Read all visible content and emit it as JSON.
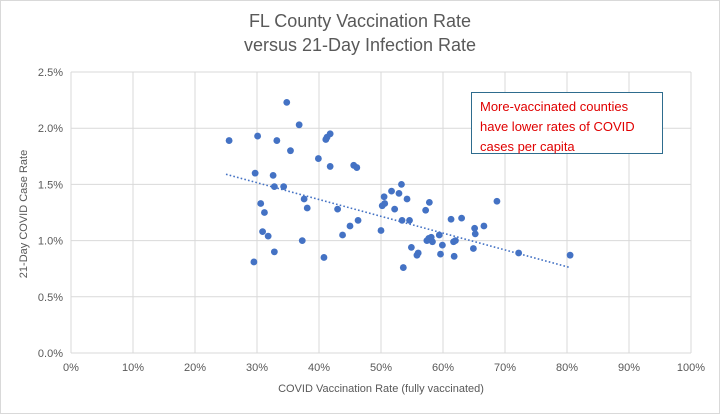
{
  "chart_data": {
    "type": "scatter",
    "title_lines": [
      "FL County Vaccination Rate",
      "versus 21-Day Infection Rate"
    ],
    "xlabel": "COVID Vaccination Rate (fully vaccinated)",
    "ylabel": "21-Day COVID Case Rate",
    "xlim": [
      0,
      100
    ],
    "ylim": [
      0,
      2.5
    ],
    "x_ticks": [
      "0%",
      "10%",
      "20%",
      "30%",
      "40%",
      "50%",
      "60%",
      "70%",
      "80%",
      "90%",
      "100%"
    ],
    "y_ticks": [
      "0.0%",
      "0.5%",
      "1.0%",
      "1.5%",
      "2.0%",
      "2.5%"
    ],
    "grid": "both",
    "point_color": "#4472c4",
    "trendline": {
      "style": "dotted",
      "color": "#4472c4",
      "x": [
        25,
        80.5
      ],
      "y": [
        1.59,
        0.76
      ]
    },
    "annotation_lines": [
      "More-vaccinated counties",
      "have lower rates of COVID",
      "cases per capita"
    ],
    "annotation_color": "#e00000",
    "points": [
      {
        "x": 25.5,
        "y": 1.89
      },
      {
        "x": 29.5,
        "y": 0.81
      },
      {
        "x": 29.7,
        "y": 1.6
      },
      {
        "x": 30.1,
        "y": 1.93
      },
      {
        "x": 30.6,
        "y": 1.33
      },
      {
        "x": 30.9,
        "y": 1.08
      },
      {
        "x": 31.2,
        "y": 1.25
      },
      {
        "x": 31.8,
        "y": 1.04
      },
      {
        "x": 32.6,
        "y": 1.58
      },
      {
        "x": 32.8,
        "y": 1.48
      },
      {
        "x": 32.8,
        "y": 0.9
      },
      {
        "x": 33.2,
        "y": 1.89
      },
      {
        "x": 34.3,
        "y": 1.48
      },
      {
        "x": 34.8,
        "y": 2.23
      },
      {
        "x": 35.4,
        "y": 1.8
      },
      {
        "x": 36.8,
        "y": 2.03
      },
      {
        "x": 37.3,
        "y": 1.0
      },
      {
        "x": 37.6,
        "y": 1.37
      },
      {
        "x": 38.1,
        "y": 1.29
      },
      {
        "x": 39.9,
        "y": 1.73
      },
      {
        "x": 40.8,
        "y": 0.85
      },
      {
        "x": 41.1,
        "y": 1.9
      },
      {
        "x": 41.3,
        "y": 1.92
      },
      {
        "x": 41.8,
        "y": 1.95
      },
      {
        "x": 41.8,
        "y": 1.66
      },
      {
        "x": 43.0,
        "y": 1.28
      },
      {
        "x": 43.8,
        "y": 1.05
      },
      {
        "x": 45.0,
        "y": 1.13
      },
      {
        "x": 45.6,
        "y": 1.67
      },
      {
        "x": 46.1,
        "y": 1.65
      },
      {
        "x": 46.3,
        "y": 1.18
      },
      {
        "x": 50.0,
        "y": 1.09
      },
      {
        "x": 50.2,
        "y": 1.31
      },
      {
        "x": 50.5,
        "y": 1.39
      },
      {
        "x": 50.6,
        "y": 1.33
      },
      {
        "x": 51.7,
        "y": 1.44
      },
      {
        "x": 52.2,
        "y": 1.28
      },
      {
        "x": 52.9,
        "y": 1.42
      },
      {
        "x": 53.3,
        "y": 1.5
      },
      {
        "x": 53.4,
        "y": 1.18
      },
      {
        "x": 53.6,
        "y": 0.76
      },
      {
        "x": 54.2,
        "y": 1.37
      },
      {
        "x": 54.6,
        "y": 1.18
      },
      {
        "x": 54.9,
        "y": 0.94
      },
      {
        "x": 55.8,
        "y": 0.87
      },
      {
        "x": 56.0,
        "y": 0.89
      },
      {
        "x": 57.2,
        "y": 1.27
      },
      {
        "x": 57.4,
        "y": 1.0
      },
      {
        "x": 57.7,
        "y": 1.02
      },
      {
        "x": 57.8,
        "y": 1.34
      },
      {
        "x": 58.1,
        "y": 1.03
      },
      {
        "x": 58.3,
        "y": 0.99
      },
      {
        "x": 59.4,
        "y": 1.05
      },
      {
        "x": 59.6,
        "y": 0.88
      },
      {
        "x": 59.9,
        "y": 0.96
      },
      {
        "x": 61.3,
        "y": 1.19
      },
      {
        "x": 61.7,
        "y": 0.99
      },
      {
        "x": 61.8,
        "y": 0.86
      },
      {
        "x": 62.0,
        "y": 1.0
      },
      {
        "x": 63.0,
        "y": 1.2
      },
      {
        "x": 64.9,
        "y": 0.93
      },
      {
        "x": 65.1,
        "y": 1.11
      },
      {
        "x": 65.2,
        "y": 1.06
      },
      {
        "x": 66.6,
        "y": 1.13
      },
      {
        "x": 68.7,
        "y": 1.35
      },
      {
        "x": 72.2,
        "y": 0.89
      },
      {
        "x": 80.5,
        "y": 0.87
      }
    ]
  }
}
